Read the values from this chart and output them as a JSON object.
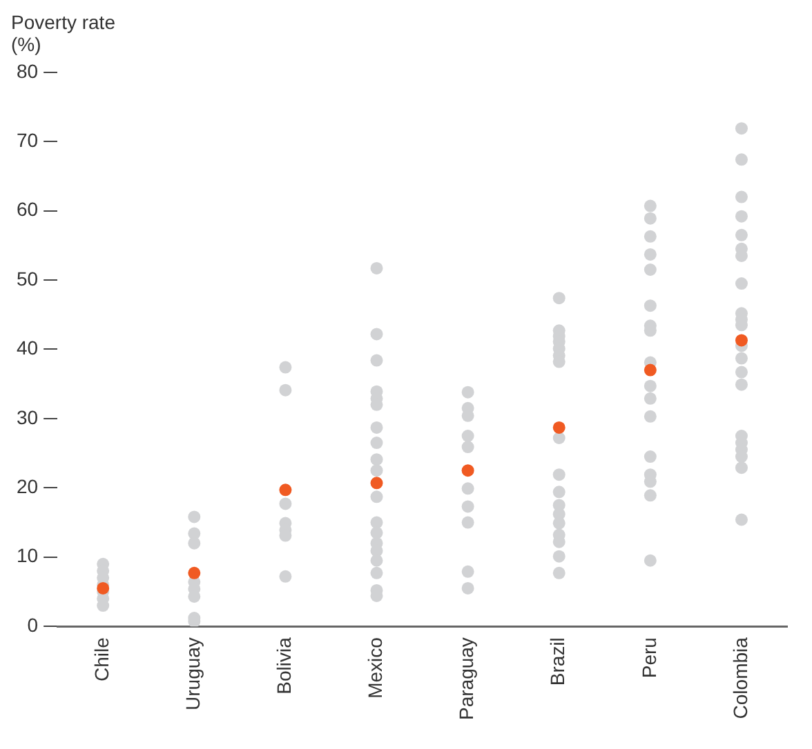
{
  "chart_data": {
    "type": "scatter",
    "ylabel": "Poverty rate (%)",
    "categories": [
      "Chile",
      "Uruguay",
      "Bolivia",
      "Mexico",
      "Paraguay",
      "Brazil",
      "Peru",
      "Colombia"
    ],
    "ylim": [
      0,
      80
    ],
    "yticks": [
      0,
      10,
      20,
      30,
      40,
      50,
      60,
      70,
      80
    ],
    "grid": false,
    "legend": false,
    "marker": "circle",
    "series": [
      {
        "color": "#d1d2d4",
        "x": [
          "Chile",
          "Chile",
          "Chile",
          "Chile",
          "Chile",
          "Chile",
          "Chile",
          "Uruguay",
          "Uruguay",
          "Uruguay",
          "Uruguay",
          "Uruguay",
          "Uruguay",
          "Uruguay",
          "Uruguay",
          "Bolivia",
          "Bolivia",
          "Bolivia",
          "Bolivia",
          "Bolivia",
          "Bolivia",
          "Bolivia",
          "Mexico",
          "Mexico",
          "Mexico",
          "Mexico",
          "Mexico",
          "Mexico",
          "Mexico",
          "Mexico",
          "Mexico",
          "Mexico",
          "Mexico",
          "Mexico",
          "Mexico",
          "Mexico",
          "Mexico",
          "Mexico",
          "Mexico",
          "Mexico",
          "Mexico",
          "Paraguay",
          "Paraguay",
          "Paraguay",
          "Paraguay",
          "Paraguay",
          "Paraguay",
          "Paraguay",
          "Paraguay",
          "Paraguay",
          "Paraguay",
          "Brazil",
          "Brazil",
          "Brazil",
          "Brazil",
          "Brazil",
          "Brazil",
          "Brazil",
          "Brazil",
          "Brazil",
          "Brazil",
          "Brazil",
          "Brazil",
          "Brazil",
          "Brazil",
          "Brazil",
          "Brazil",
          "Brazil",
          "Peru",
          "Peru",
          "Peru",
          "Peru",
          "Peru",
          "Peru",
          "Peru",
          "Peru",
          "Peru",
          "Peru",
          "Peru",
          "Peru",
          "Peru",
          "Peru",
          "Peru",
          "Peru",
          "Peru",
          "Colombia",
          "Colombia",
          "Colombia",
          "Colombia",
          "Colombia",
          "Colombia",
          "Colombia",
          "Colombia",
          "Colombia",
          "Colombia",
          "Colombia",
          "Colombia",
          "Colombia",
          "Colombia",
          "Colombia",
          "Colombia",
          "Colombia",
          "Colombia",
          "Colombia",
          "Colombia",
          "Colombia"
        ],
        "values": [
          9,
          8,
          7,
          6,
          5,
          4,
          3,
          15.8,
          13.4,
          12,
          6.4,
          5.4,
          4.3,
          1.2,
          0.7,
          37.4,
          34.1,
          17.7,
          14.9,
          13.9,
          13.1,
          7.2,
          51.7,
          42.2,
          38.4,
          33.9,
          32.9,
          32,
          28.7,
          26.5,
          24.1,
          22.5,
          18.7,
          15,
          13.5,
          12,
          10.9,
          9.5,
          7.7,
          5.2,
          4.4,
          33.8,
          31.5,
          30.4,
          27.5,
          25.9,
          19.9,
          17.3,
          15,
          7.9,
          5.5,
          47.4,
          42.7,
          41.9,
          41.1,
          40.1,
          39.1,
          38.2,
          27.2,
          21.9,
          19.4,
          17.5,
          16.2,
          14.9,
          13.2,
          12.2,
          10.1,
          7.7,
          60.7,
          58.9,
          56.3,
          53.7,
          51.5,
          46.3,
          43.4,
          42.7,
          38.1,
          34.7,
          32.9,
          30.3,
          24.5,
          21.9,
          20.9,
          18.9,
          9.5,
          71.9,
          67.4,
          62,
          59.2,
          56.5,
          54.5,
          53.5,
          49.5,
          45.2,
          44.3,
          43.5,
          40.5,
          38.7,
          36.7,
          34.9,
          27.5,
          26.5,
          25.5,
          24.5,
          22.9,
          15.4
        ]
      },
      {
        "color": "#f05a22",
        "x": [
          "Chile",
          "Uruguay",
          "Bolivia",
          "Mexico",
          "Paraguay",
          "Brazil",
          "Peru",
          "Colombia"
        ],
        "values": [
          5.5,
          7.7,
          19.7,
          20.7,
          22.5,
          28.7,
          37,
          41.3
        ]
      }
    ]
  }
}
